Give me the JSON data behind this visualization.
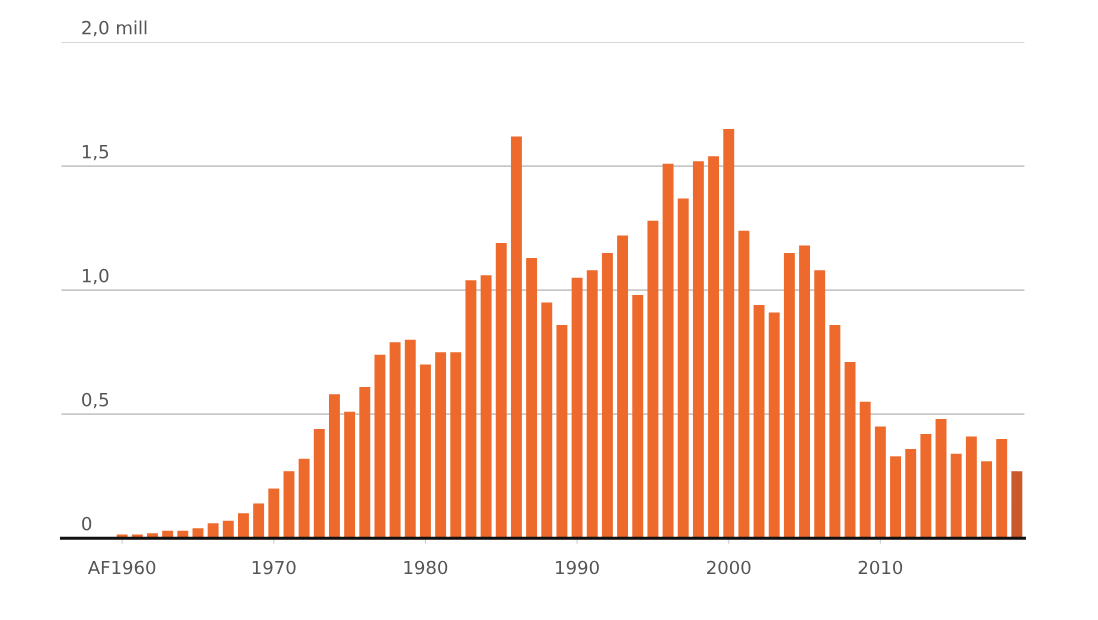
{
  "chart_data": {
    "type": "bar",
    "x": [
      1960,
      1961,
      1962,
      1963,
      1964,
      1965,
      1966,
      1967,
      1968,
      1969,
      1970,
      1971,
      1972,
      1973,
      1974,
      1975,
      1976,
      1977,
      1978,
      1979,
      1980,
      1981,
      1982,
      1983,
      1984,
      1985,
      1986,
      1987,
      1988,
      1989,
      1990,
      1991,
      1992,
      1993,
      1994,
      1995,
      1996,
      1997,
      1998,
      1999,
      2000,
      2001,
      2002,
      2003,
      2004,
      2005,
      2006,
      2007,
      2008,
      2009,
      2010,
      2011,
      2012,
      2013,
      2014,
      2015,
      2016,
      2017,
      2018,
      2019
    ],
    "values": [
      0.015,
      0.015,
      0.02,
      0.03,
      0.03,
      0.04,
      0.06,
      0.07,
      0.1,
      0.14,
      0.2,
      0.27,
      0.32,
      0.44,
      0.58,
      0.51,
      0.61,
      0.74,
      0.79,
      0.8,
      0.7,
      0.75,
      0.75,
      1.04,
      1.06,
      1.19,
      1.62,
      1.13,
      0.95,
      0.86,
      1.05,
      1.08,
      1.15,
      1.22,
      0.98,
      1.28,
      1.51,
      1.37,
      1.52,
      1.54,
      1.65,
      1.24,
      0.94,
      0.91,
      1.15,
      1.18,
      1.08,
      0.86,
      0.71,
      0.55,
      0.45,
      0.33,
      0.36,
      0.42,
      0.48,
      0.34,
      0.41,
      0.31,
      0.4,
      0.27
    ],
    "colors": [
      "#ee6a2c",
      "#ee6a2c",
      "#ee6a2c",
      "#ee6a2c",
      "#ee6a2c",
      "#ee6a2c",
      "#ee6a2c",
      "#ee6a2c",
      "#ee6a2c",
      "#ee6a2c",
      "#ee6a2c",
      "#ee6a2c",
      "#ee6a2c",
      "#ee6a2c",
      "#ee6a2c",
      "#ee6a2c",
      "#ee6a2c",
      "#ee6a2c",
      "#ee6a2c",
      "#ee6a2c",
      "#ee6a2c",
      "#ee6a2c",
      "#ee6a2c",
      "#ee6a2c",
      "#ee6a2c",
      "#ee6a2c",
      "#ee6a2c",
      "#ee6a2c",
      "#ee6a2c",
      "#ee6a2c",
      "#ee6a2c",
      "#ee6a2c",
      "#ee6a2c",
      "#ee6a2c",
      "#ee6a2c",
      "#ee6a2c",
      "#ee6a2c",
      "#ee6a2c",
      "#ee6a2c",
      "#ee6a2c",
      "#ee6a2c",
      "#ee6a2c",
      "#ee6a2c",
      "#ee6a2c",
      "#ee6a2c",
      "#ee6a2c",
      "#ee6a2c",
      "#ee6a2c",
      "#ee6a2c",
      "#ee6a2c",
      "#ee6a2c",
      "#ee6a2c",
      "#ee6a2c",
      "#ee6a2c",
      "#ee6a2c",
      "#ee6a2c",
      "#ee6a2c",
      "#ee6a2c",
      "#ee6a2c",
      "#c9582a"
    ],
    "xlim": [
      1956,
      2019.5
    ],
    "xticks": [
      {
        "value": 1960,
        "label": "AF1960"
      },
      1970,
      1980,
      1990,
      2000,
      2010
    ],
    "ylim": [
      0,
      2
    ],
    "yticks": [
      {
        "value": 0,
        "label": "0"
      },
      {
        "value": 0.5,
        "label": "0,5"
      },
      {
        "value": 1,
        "label": "1,0"
      },
      {
        "value": 1.5,
        "label": "1,5"
      },
      {
        "value": 2,
        "label": "2,0 mill"
      }
    ],
    "grid": "y",
    "legend": false
  }
}
